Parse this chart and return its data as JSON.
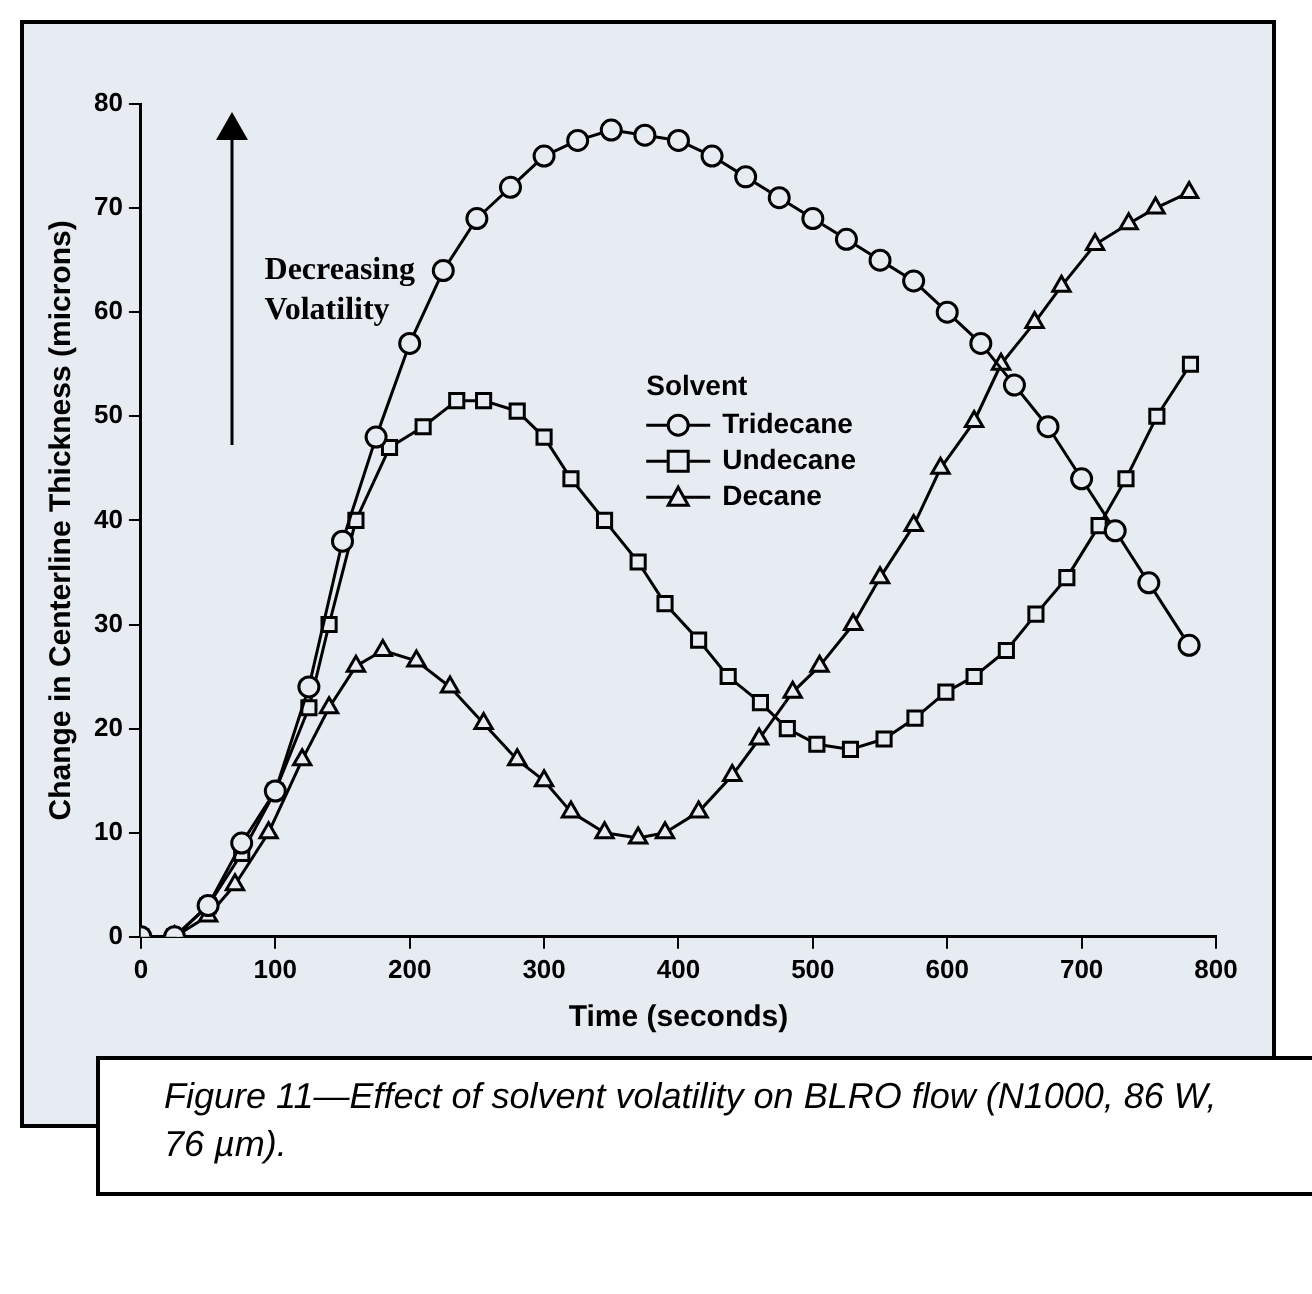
{
  "chart_data": {
    "type": "line",
    "xlabel": "Time (seconds)",
    "ylabel": "Change in Centerline Thickness (microns)",
    "legend_title": "Solvent",
    "legend": "right",
    "grid": false,
    "xlim": [
      0,
      800
    ],
    "xticks": [
      0,
      100,
      200,
      300,
      400,
      500,
      600,
      700,
      800
    ],
    "ylim": [
      0,
      80
    ],
    "yticks": [
      0,
      10,
      20,
      30,
      40,
      50,
      60,
      70,
      80
    ],
    "annotations": [
      "Decreasing Volatility",
      "Figure 11—Effect of solvent volatility on BLRO flow (N1000, 86 W, 76 µm)."
    ],
    "series": [
      {
        "name": "Tridecane",
        "color": "#000000",
        "marker": "circle",
        "x": [
          0,
          25,
          50,
          75,
          100,
          125,
          150,
          175,
          200,
          225,
          250,
          275,
          300,
          325,
          350,
          375,
          400,
          425,
          450,
          475,
          500,
          525,
          550,
          575,
          600,
          625,
          650,
          675,
          700,
          725,
          750,
          780
        ],
        "values": [
          0,
          0,
          3,
          9,
          14,
          24,
          38,
          48,
          57,
          64,
          69,
          72,
          75,
          76.5,
          77.5,
          77,
          76.5,
          75,
          73,
          71,
          69,
          67,
          65,
          63,
          60,
          57,
          53,
          49,
          44,
          39,
          34,
          28
        ]
      },
      {
        "name": "Undecane",
        "color": "#000000",
        "marker": "square",
        "x": [
          0,
          25,
          50,
          75,
          100,
          125,
          140,
          160,
          185,
          210,
          235,
          255,
          280,
          300,
          320,
          345,
          370,
          390,
          415,
          437,
          461,
          481,
          503,
          528,
          553,
          576,
          599,
          620,
          644,
          666,
          689,
          713,
          733,
          756,
          781
        ],
        "values": [
          0,
          0,
          3,
          8,
          14,
          22,
          30,
          40,
          47,
          49,
          51.5,
          51.5,
          50.5,
          48,
          44,
          40,
          36,
          32,
          28.5,
          25,
          22.5,
          20,
          18.5,
          18,
          19,
          21,
          23.5,
          25,
          27.5,
          31,
          34.5,
          39.5,
          44,
          50,
          55
        ]
      },
      {
        "name": "Decane",
        "color": "#000000",
        "marker": "triangle",
        "x": [
          0,
          25,
          50,
          70,
          95,
          120,
          140,
          160,
          180,
          205,
          230,
          255,
          280,
          300,
          320,
          345,
          370,
          390,
          415,
          440,
          460,
          485,
          505,
          530,
          550,
          575,
          595,
          620,
          640,
          665,
          685,
          710,
          735,
          755,
          780
        ],
        "values": [
          0,
          0,
          2,
          5,
          10,
          17,
          22,
          26,
          27.5,
          26.5,
          24,
          20.5,
          17,
          15,
          12,
          10,
          9.5,
          10,
          12,
          15.5,
          19,
          23.5,
          26,
          30,
          34.5,
          39.5,
          45,
          49.5,
          55,
          59,
          62.5,
          66.5,
          68.5,
          70,
          71.5
        ]
      }
    ]
  }
}
